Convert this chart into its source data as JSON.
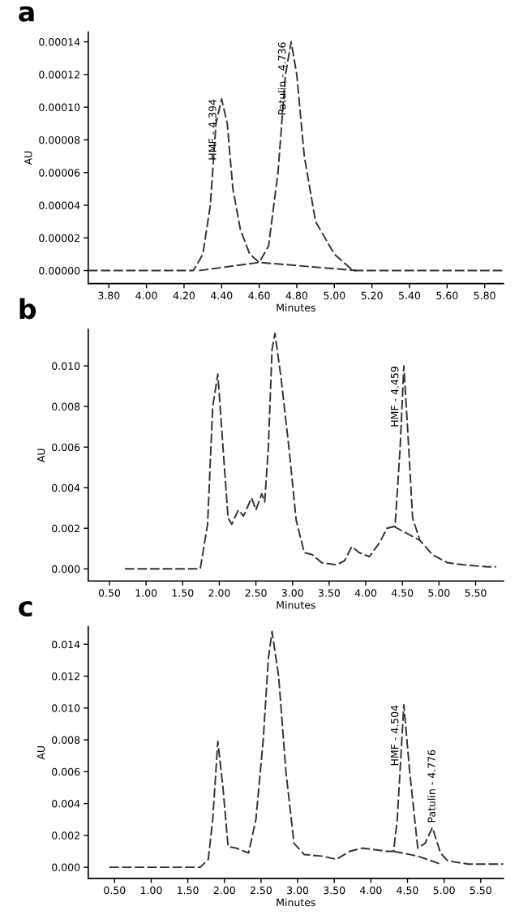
{
  "chart_data": [
    {
      "type": "line",
      "title": "a",
      "xlabel": "Minutes",
      "ylabel": "AU",
      "line_style": "dashed",
      "grid": false,
      "xlim": [
        3.69,
        5.9
      ],
      "ylim": [
        -8e-06,
        0.000146
      ],
      "xticks": [
        {
          "value": 3.8,
          "label": "3.80"
        },
        {
          "value": 4.0,
          "label": "4.00"
        },
        {
          "value": 4.2,
          "label": "4.20"
        },
        {
          "value": 4.4,
          "label": "4.40"
        },
        {
          "value": 4.6,
          "label": "4.60"
        },
        {
          "value": 4.8,
          "label": "4.80"
        },
        {
          "value": 5.0,
          "label": "5.00"
        },
        {
          "value": 5.2,
          "label": "5.20"
        },
        {
          "value": 5.4,
          "label": "5.40"
        },
        {
          "value": 5.6,
          "label": "5.60"
        },
        {
          "value": 5.8,
          "label": "5.80"
        }
      ],
      "yticks": [
        {
          "value": 0,
          "label": "0.00000"
        },
        {
          "value": 2e-05,
          "label": "0.00002"
        },
        {
          "value": 4e-05,
          "label": "0.00004"
        },
        {
          "value": 6e-05,
          "label": "0.00006"
        },
        {
          "value": 8e-05,
          "label": "0.00008"
        },
        {
          "value": 0.0001,
          "label": "0.00010"
        },
        {
          "value": 0.00012,
          "label": "0.00012"
        },
        {
          "value": 0.00014,
          "label": "0.00014"
        }
      ],
      "series": [
        {
          "color": "#333333",
          "x": [
            3.69,
            3.9,
            4.1,
            4.25,
            4.3,
            4.34,
            4.37,
            4.4,
            4.43,
            4.46,
            4.5,
            4.55,
            4.6,
            4.65,
            4.7,
            4.74,
            4.77,
            4.8,
            4.84,
            4.9,
            5.0,
            5.1,
            5.2,
            5.35,
            5.5,
            5.7,
            5.9
          ],
          "values": [
            0.0,
            0.0,
            0.0,
            0.0,
            1e-05,
            4e-05,
            9e-05,
            0.000105,
            9e-05,
            5e-05,
            2.5e-05,
            1e-05,
            5e-06,
            1.5e-05,
            6e-05,
            0.00012,
            0.00014,
            0.00012,
            7e-05,
            3e-05,
            1e-05,
            0.0,
            0.0,
            0.0,
            0.0,
            0.0,
            0.0
          ]
        },
        {
          "color": "#333333",
          "x": [
            4.28,
            4.6,
            5.12
          ],
          "values": [
            0.0,
            5e-06,
            0.0
          ]
        }
      ],
      "annotations": [
        {
          "text": "HMF - 4.394",
          "x": 4.4,
          "y": 0.000105
        },
        {
          "text": "Patulin - 4.736",
          "x": 4.77,
          "y": 0.00014
        }
      ]
    },
    {
      "type": "line",
      "title": "b",
      "xlabel": "Minutes",
      "ylabel": "AU",
      "line_style": "dashed",
      "grid": false,
      "xlim": [
        0.21,
        5.88
      ],
      "ylim": [
        -0.0006,
        0.0118
      ],
      "xticks": [
        {
          "value": 0.5,
          "label": "0.50"
        },
        {
          "value": 1.0,
          "label": "1.00"
        },
        {
          "value": 1.5,
          "label": "1.50"
        },
        {
          "value": 2.0,
          "label": "2.00"
        },
        {
          "value": 2.5,
          "label": "2.50"
        },
        {
          "value": 3.0,
          "label": "3.00"
        },
        {
          "value": 3.5,
          "label": "3.50"
        },
        {
          "value": 4.0,
          "label": "4.00"
        },
        {
          "value": 4.5,
          "label": "4.50"
        },
        {
          "value": 5.0,
          "label": "5.00"
        },
        {
          "value": 5.5,
          "label": "5.50"
        }
      ],
      "yticks": [
        {
          "value": 0,
          "label": "0.000"
        },
        {
          "value": 0.002,
          "label": "0.002"
        },
        {
          "value": 0.004,
          "label": "0.004"
        },
        {
          "value": 0.006,
          "label": "0.006"
        },
        {
          "value": 0.008,
          "label": "0.008"
        },
        {
          "value": 0.01,
          "label": "0.010"
        }
      ],
      "series": [
        {
          "color": "#333333",
          "x": [
            0.71,
            1.22,
            1.74,
            1.84,
            1.91,
            1.98,
            2.05,
            2.12,
            2.17,
            2.26,
            2.33,
            2.44,
            2.5,
            2.58,
            2.62,
            2.67,
            2.72,
            2.76,
            2.84,
            2.95,
            3.05,
            3.16,
            3.27,
            3.4,
            3.6,
            3.71,
            3.81,
            3.91,
            4.05,
            4.19,
            4.29,
            4.4,
            4.47,
            4.52,
            4.57,
            4.64,
            4.74,
            4.91,
            5.12,
            5.33,
            5.67,
            5.78
          ],
          "values": [
            0.0,
            0.0,
            0.0,
            0.0022,
            0.008,
            0.0096,
            0.006,
            0.0025,
            0.0022,
            0.0029,
            0.0026,
            0.0035,
            0.0029,
            0.0037,
            0.0033,
            0.006,
            0.0108,
            0.0116,
            0.0095,
            0.006,
            0.0024,
            0.0008,
            0.0007,
            0.0003,
            0.0002,
            0.0004,
            0.0011,
            0.0008,
            0.0006,
            0.0013,
            0.002,
            0.0021,
            0.006,
            0.01,
            0.007,
            0.0025,
            0.0014,
            0.0007,
            0.0003,
            0.0002,
            0.0001,
            0.0001
          ]
        },
        {
          "color": "#333333",
          "x": [
            4.38,
            4.74
          ],
          "values": [
            0.0021,
            0.0014
          ]
        }
      ],
      "annotations": [
        {
          "text": "HMF - 4.459",
          "x": 4.52,
          "y": 0.01
        }
      ]
    },
    {
      "type": "line",
      "title": "c",
      "xlabel": "Minutes",
      "ylabel": "AU",
      "line_style": "dashed",
      "grid": false,
      "xlim": [
        0.14,
        5.81
      ],
      "ylim": [
        -0.0007,
        0.0151
      ],
      "xticks": [
        {
          "value": 0.5,
          "label": "0.50"
        },
        {
          "value": 1.0,
          "label": "1.00"
        },
        {
          "value": 1.5,
          "label": "1.50"
        },
        {
          "value": 2.0,
          "label": "2.00"
        },
        {
          "value": 2.5,
          "label": "2.50"
        },
        {
          "value": 3.0,
          "label": "3.00"
        },
        {
          "value": 3.5,
          "label": "3.50"
        },
        {
          "value": 4.0,
          "label": "4.00"
        },
        {
          "value": 4.5,
          "label": "4.50"
        },
        {
          "value": 5.0,
          "label": "5.00"
        },
        {
          "value": 5.5,
          "label": "5.50"
        }
      ],
      "yticks": [
        {
          "value": 0,
          "label": "0.000"
        },
        {
          "value": 0.002,
          "label": "0.002"
        },
        {
          "value": 0.004,
          "label": "0.004"
        },
        {
          "value": 0.006,
          "label": "0.006"
        },
        {
          "value": 0.008,
          "label": "0.008"
        },
        {
          "value": 0.01,
          "label": "0.010"
        },
        {
          "value": 0.012,
          "label": "0.012"
        },
        {
          "value": 0.014,
          "label": "0.014"
        }
      ],
      "series": [
        {
          "color": "#333333",
          "x": [
            0.43,
            1.67,
            1.78,
            1.84,
            1.91,
            1.98,
            2.05,
            2.16,
            2.33,
            2.43,
            2.53,
            2.6,
            2.65,
            2.74,
            2.84,
            2.95,
            3.09,
            3.33,
            3.53,
            3.71,
            3.88,
            4.22,
            4.31,
            4.36,
            4.45,
            4.53,
            4.64,
            4.74,
            4.84,
            4.95,
            5.05,
            5.33,
            5.81
          ],
          "values": [
            0.0,
            0.0,
            0.0005,
            0.003,
            0.0079,
            0.005,
            0.0013,
            0.0012,
            0.0009,
            0.003,
            0.008,
            0.0131,
            0.0148,
            0.012,
            0.006,
            0.0015,
            0.0008,
            0.0007,
            0.0005,
            0.001,
            0.0012,
            0.001,
            0.001,
            0.003,
            0.0102,
            0.006,
            0.0012,
            0.0015,
            0.0025,
            0.0009,
            0.0004,
            0.0002,
            0.0002
          ]
        },
        {
          "color": "#333333",
          "x": [
            4.31,
            4.64,
            4.95
          ],
          "values": [
            0.001,
            0.0007,
            0.0002
          ]
        }
      ],
      "annotations": [
        {
          "text": "HMF - 4.504",
          "x": 4.45,
          "y": 0.0102
        },
        {
          "text": "Patulin - 4.776",
          "x": 4.84,
          "y": 0.0025
        }
      ]
    }
  ]
}
